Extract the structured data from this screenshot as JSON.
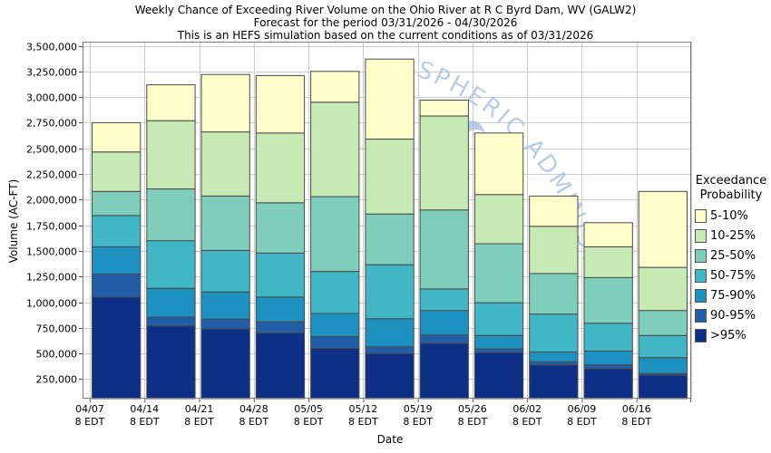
{
  "titles": {
    "line1": "Weekly Chance of Exceeding River Volume on the Ohio River at R C Byrd Dam, WV (GALW2)",
    "line2": "Forecast for the period 03/31/2026 - 04/30/2026",
    "line3": "This is an HEFS simulation based on the current conditions as of 03/31/2026"
  },
  "legend": {
    "title_line1": "Exceedance",
    "title_line2": "Probability"
  },
  "watermark": {
    "text": "SPHERIC ADMINISTRATION",
    "color": "#a9c0e2"
  },
  "chart_data": {
    "type": "bar",
    "stacked": true,
    "title": "Weekly Chance of Exceeding River Volume on the Ohio River at R C Byrd Dam, WV (GALW2)",
    "subtitle": "Forecast for the period 03/31/2026 - 04/30/2026",
    "note": "This is an HEFS simulation based on the current conditions as of 03/31/2026",
    "xlabel": "Date",
    "ylabel": "Volume (AC-FT)",
    "categories": [
      "04/07",
      "04/14",
      "04/21",
      "04/28",
      "05/05",
      "05/12",
      "05/19",
      "05/26",
      "06/02",
      "06/09",
      "06/16"
    ],
    "x_sublabel": "8 EDT",
    "baseline": 60000,
    "ylim": [
      60000,
      3540000
    ],
    "yticks": {
      "start": 250000,
      "end": 3500000,
      "step": 250000
    },
    "legend_position": "right",
    "grid": true,
    "series_note": "values are cumulative segment tops (AC-FT), stacked bottom to top",
    "series": [
      {
        "name": ">95%",
        "color": "#0E2F86",
        "values": [
          1050000,
          770000,
          740000,
          700000,
          550000,
          500000,
          600000,
          510000,
          390000,
          350000,
          290000
        ]
      },
      {
        "name": "90-95%",
        "color": "#225EA8",
        "values": [
          1275000,
          855000,
          835000,
          810000,
          665000,
          565000,
          680000,
          545000,
          420000,
          390000,
          305000
        ]
      },
      {
        "name": "75-90%",
        "color": "#1D91C0",
        "values": [
          1540000,
          1135000,
          1100000,
          1050000,
          890000,
          840000,
          920000,
          675000,
          515000,
          525000,
          460000
        ]
      },
      {
        "name": "50-75%",
        "color": "#41B6C4",
        "values": [
          1845000,
          1600000,
          1505000,
          1480000,
          1300000,
          1365000,
          1130000,
          995000,
          885000,
          795000,
          675000
        ]
      },
      {
        "name": "25-50%",
        "color": "#7FCDBB",
        "values": [
          2080000,
          2105000,
          2035000,
          1970000,
          2030000,
          1860000,
          1900000,
          1570000,
          1280000,
          1240000,
          920000
        ]
      },
      {
        "name": "10-25%",
        "color": "#C7E9B4",
        "values": [
          2465000,
          2770000,
          2660000,
          2650000,
          2950000,
          2590000,
          2815000,
          2050000,
          1740000,
          1540000,
          1340000
        ]
      },
      {
        "name": "5-10%",
        "color": "#FFFFCC",
        "values": [
          2750000,
          3120000,
          3220000,
          3210000,
          3250000,
          3370000,
          2970000,
          2650000,
          2035000,
          1775000,
          2080000
        ]
      }
    ]
  }
}
